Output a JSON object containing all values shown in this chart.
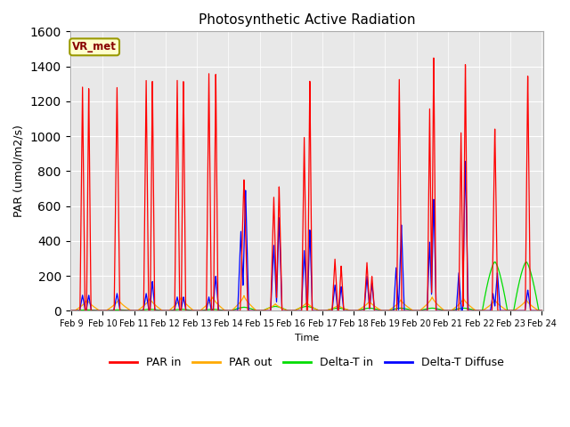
{
  "title": "Photosynthetic Active Radiation",
  "ylabel": "PAR (umol/m2/s)",
  "xlabel": "Time",
  "ylim": [
    0,
    1600
  ],
  "yticks": [
    0,
    200,
    400,
    600,
    800,
    1000,
    1200,
    1400,
    1600
  ],
  "xtick_labels": [
    "Feb 9",
    "Feb 10",
    "Feb 11",
    "Feb 12",
    "Feb 13",
    "Feb 14",
    "Feb 15",
    "Feb 16",
    "Feb 17",
    "Feb 18",
    "Feb 19",
    "Feb 20",
    "Feb 21",
    "Feb 22",
    "Feb 23",
    "Feb 24"
  ],
  "bg_color": "#e8e8e8",
  "legend_label": "VR_met",
  "legend_box_facecolor": "#ffffcc",
  "legend_box_edgecolor": "#999900",
  "series_colors": {
    "PAR_in": "#ff0000",
    "PAR_out": "#ffaa00",
    "DeltaT_in": "#00dd00",
    "DeltaT_Diffuse": "#0000ff"
  },
  "legend_entries": [
    "PAR in",
    "PAR out",
    "Delta-T in",
    "Delta-T Diffuse"
  ],
  "grid_color": "#ffffff",
  "spine_color": "#aaaaaa"
}
